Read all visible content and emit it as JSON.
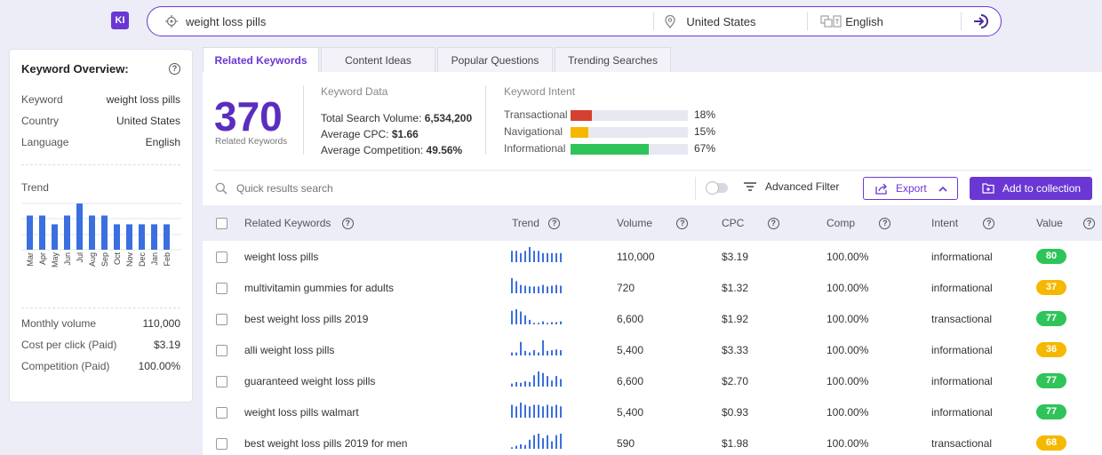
{
  "app": {
    "logo": "KI"
  },
  "search": {
    "query": "weight loss pills",
    "location": "United States",
    "language": "English"
  },
  "overview": {
    "title": "Keyword Overview:",
    "rows": [
      {
        "label": "Keyword",
        "value": "weight loss pills"
      },
      {
        "label": "Country",
        "value": "United States"
      },
      {
        "label": "Language",
        "value": "English"
      }
    ],
    "trend_label": "Trend",
    "trend_months": [
      "Mar",
      "Apr",
      "May",
      "Jun",
      "Jul",
      "Aug",
      "Sep",
      "Oct",
      "Nov",
      "Dec",
      "Jan",
      "Feb"
    ],
    "trend_values": [
      0.74,
      0.74,
      0.55,
      0.74,
      1.0,
      0.74,
      0.74,
      0.55,
      0.55,
      0.55,
      0.55,
      0.55
    ],
    "stats": [
      {
        "label": "Monthly volume",
        "value": "110,000"
      },
      {
        "label": "Cost per click (Paid)",
        "value": "$3.19"
      },
      {
        "label": "Competition (Paid)",
        "value": "100.00%"
      }
    ]
  },
  "tabs": [
    "Related Keywords",
    "Content Ideas",
    "Popular Questions",
    "Trending Searches"
  ],
  "summary": {
    "count": "370",
    "count_label": "Related Keywords",
    "data_title": "Keyword Data",
    "data": [
      {
        "label": "Total Search Volume:",
        "value": "6,534,200"
      },
      {
        "label": "Average CPC:",
        "value": "$1.66"
      },
      {
        "label": "Average Competition:",
        "value": "49.56%"
      }
    ],
    "intent_title": "Keyword Intent",
    "intents": [
      {
        "label": "Transactional",
        "pct": "18%",
        "frac": 0.18,
        "color": "#d64030"
      },
      {
        "label": "Navigational",
        "pct": "15%",
        "frac": 0.15,
        "color": "#f5b800"
      },
      {
        "label": "Informational",
        "pct": "67%",
        "frac": 0.67,
        "color": "#2ec45a"
      }
    ]
  },
  "toolbar": {
    "search_placeholder": "Quick results search",
    "advanced": "Advanced Filter",
    "export": "Export",
    "add": "Add to collection"
  },
  "table": {
    "headers": [
      "Related Keywords",
      "Trend",
      "Volume",
      "CPC",
      "Comp",
      "Intent",
      "Value"
    ],
    "rows": [
      {
        "kw": "weight loss pills",
        "vol": "110,000",
        "cpc": "$3.19",
        "comp": "100.00%",
        "intent": "informational",
        "value": "80",
        "color": "#2ec45a",
        "trend": [
          0.75,
          0.75,
          0.6,
          0.75,
          1,
          0.75,
          0.75,
          0.6,
          0.6,
          0.6,
          0.6,
          0.6
        ]
      },
      {
        "kw": "multivitamin gummies for adults",
        "vol": "720",
        "cpc": "$1.32",
        "comp": "100.00%",
        "intent": "informational",
        "value": "37",
        "color": "#f5b800",
        "trend": [
          1,
          0.8,
          0.55,
          0.5,
          0.45,
          0.45,
          0.45,
          0.55,
          0.45,
          0.5,
          0.55,
          0.5
        ]
      },
      {
        "kw": "best weight loss pills 2019",
        "vol": "6,600",
        "cpc": "$1.92",
        "comp": "100.00%",
        "intent": "transactional",
        "value": "77",
        "color": "#2ec45a",
        "trend": [
          0.9,
          1,
          0.85,
          0.6,
          0.3,
          0.1,
          0.1,
          0.2,
          0.1,
          0.15,
          0.15,
          0.2
        ]
      },
      {
        "kw": "alli weight loss pills",
        "vol": "5,400",
        "cpc": "$3.33",
        "comp": "100.00%",
        "intent": "informational",
        "value": "36",
        "color": "#f5b800",
        "trend": [
          0.2,
          0.2,
          0.9,
          0.3,
          0.2,
          0.35,
          0.2,
          1,
          0.3,
          0.35,
          0.4,
          0.35
        ]
      },
      {
        "kw": "guaranteed weight loss pills",
        "vol": "6,600",
        "cpc": "$2.70",
        "comp": "100.00%",
        "intent": "informational",
        "value": "77",
        "color": "#2ec45a",
        "trend": [
          0.2,
          0.3,
          0.25,
          0.35,
          0.3,
          0.75,
          1,
          0.9,
          0.7,
          0.4,
          0.7,
          0.5
        ]
      },
      {
        "kw": "weight loss pills walmart",
        "vol": "5,400",
        "cpc": "$0.93",
        "comp": "100.00%",
        "intent": "informational",
        "value": "77",
        "color": "#2ec45a",
        "trend": [
          0.85,
          0.75,
          1,
          0.85,
          0.75,
          0.85,
          0.85,
          0.75,
          0.85,
          0.75,
          0.85,
          0.75
        ]
      },
      {
        "kw": "best weight loss pills 2019 for men",
        "vol": "590",
        "cpc": "$1.98",
        "comp": "100.00%",
        "intent": "transactional",
        "value": "68",
        "color": "#f5b800",
        "trend": [
          0.1,
          0.2,
          0.3,
          0.25,
          0.6,
          0.9,
          1,
          0.7,
          0.9,
          0.5,
          0.9,
          1
        ]
      }
    ]
  }
}
